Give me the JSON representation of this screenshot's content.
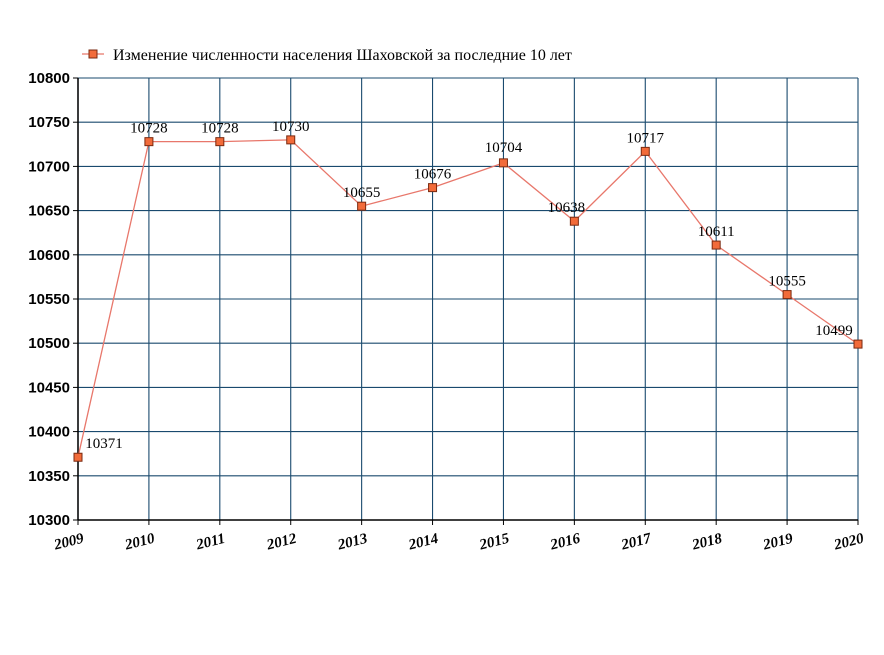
{
  "chart_data": {
    "type": "line",
    "title": "",
    "xlabel": "",
    "ylabel": "",
    "legend": {
      "entries": [
        "Изменение численности населения Шаховской за последние 10 лет"
      ],
      "position": "top"
    },
    "x": [
      "2009",
      "2010",
      "2011",
      "2012",
      "2013",
      "2014",
      "2015",
      "2016",
      "2017",
      "2018",
      "2019",
      "2020"
    ],
    "series": [
      {
        "name": "Изменение численности населения Шаховской за последние 10 лет",
        "values": [
          10371,
          10728,
          10728,
          10730,
          10655,
          10676,
          10704,
          10638,
          10717,
          10611,
          10555,
          10499
        ],
        "labels": [
          "10371",
          "10728",
          "10728",
          "10730",
          "10655",
          "10676",
          "10704",
          "10638",
          "10717",
          "10611",
          "10555",
          "10499"
        ]
      }
    ],
    "ylim": [
      10300,
      10800
    ],
    "yticks": [
      10300,
      10350,
      10400,
      10450,
      10500,
      10550,
      10600,
      10650,
      10700,
      10750,
      10800
    ],
    "grid": true,
    "colors": {
      "line": "#e8776b",
      "marker_fill": "#f26b3a",
      "marker_stroke": "#7a2a10",
      "grid": "#1a4a6e",
      "axis": "#000000"
    }
  }
}
